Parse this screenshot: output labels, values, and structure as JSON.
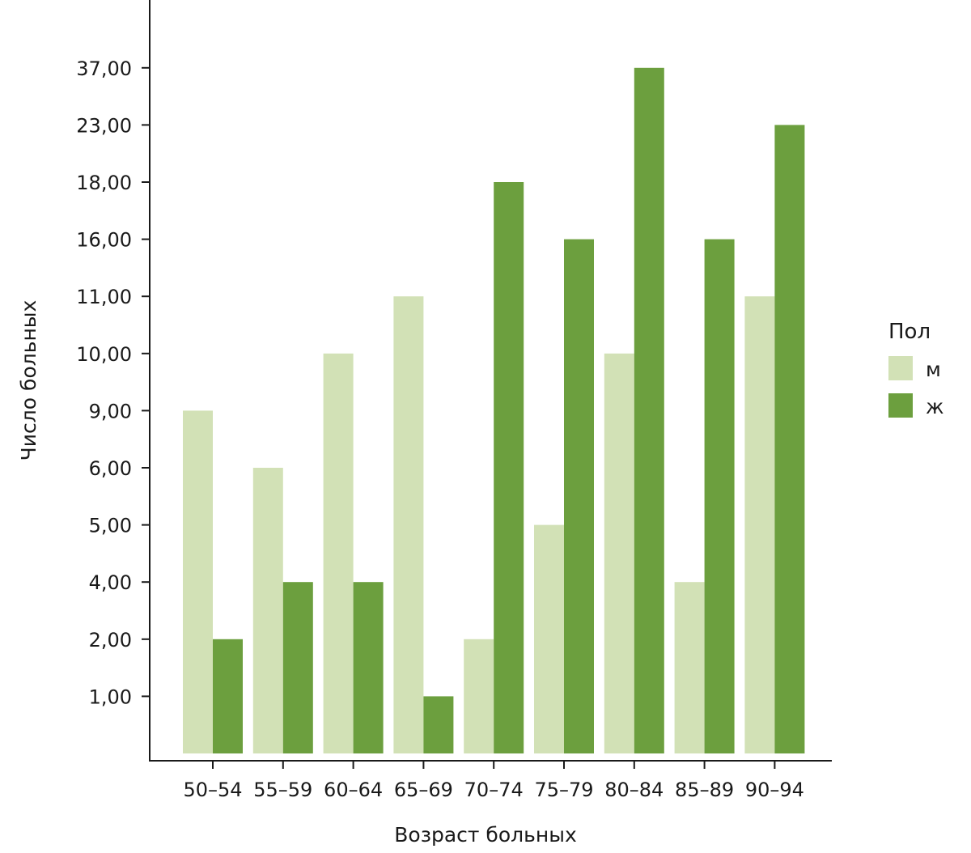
{
  "chart_data": {
    "type": "bar",
    "title": "",
    "xlabel": "Возраст больных",
    "ylabel": "Число больных",
    "categories": [
      "50–54",
      "55–59",
      "60–64",
      "65–69",
      "70–74",
      "75–79",
      "80–84",
      "85–89",
      "90–94"
    ],
    "y_tick_labels": [
      "1,00",
      "2,00",
      "4,00",
      "5,00",
      "6,00",
      "9,00",
      "10,00",
      "11,00",
      "16,00",
      "18,00",
      "23,00",
      "37,00"
    ],
    "y_scale": "ordinal (each distinct value is an equally spaced tick)",
    "series": [
      {
        "name": "м",
        "values": [
          9,
          6,
          10,
          11,
          2,
          5,
          10,
          4,
          11
        ],
        "color": "#d2e1b6"
      },
      {
        "name": "ж",
        "values": [
          2,
          4,
          4,
          1,
          18,
          16,
          37,
          16,
          23
        ],
        "color": "#6c9f3e"
      }
    ],
    "legend": {
      "title": "Пол",
      "placement": "right"
    },
    "grid": false
  }
}
